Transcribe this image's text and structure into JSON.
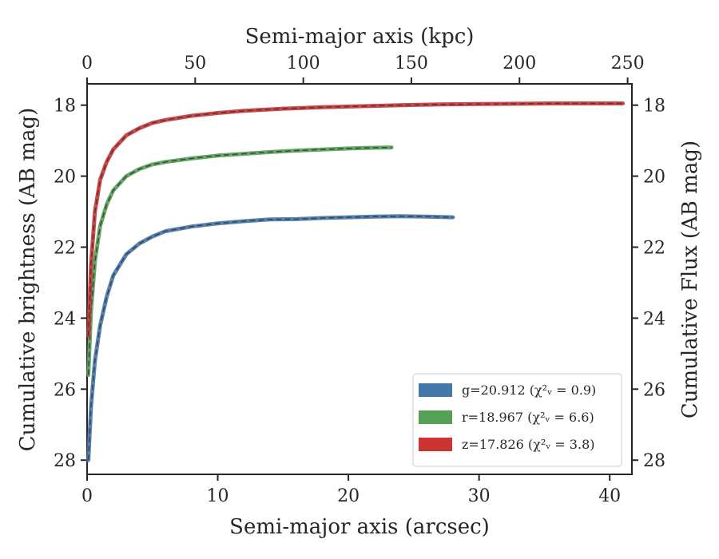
{
  "chart_data": {
    "type": "line",
    "title": "",
    "xlabel": "Semi-major axis (arcsec)",
    "ylabel": "Cumulative brightness (AB mag)",
    "x2label": "Semi-major axis (kpc)",
    "y2label": "Cumulative Flux (AB mag)",
    "xlim": [
      0,
      41.7
    ],
    "ylim": [
      28.4,
      17.4
    ],
    "x2lim": [
      0,
      252
    ],
    "y_inverted": true,
    "xticks": [
      0,
      10,
      20,
      30,
      40
    ],
    "yticks": [
      18,
      20,
      22,
      24,
      26,
      28
    ],
    "x2ticks": [
      0,
      50,
      100,
      150,
      200,
      250
    ],
    "grid": false,
    "legend_position": "lower-right",
    "series": [
      {
        "name": "g=20.912 (χ²ᵥ = 0.9)",
        "color": "#4477aa",
        "x": [
          0.1,
          0.3,
          0.6,
          1.0,
          1.5,
          2.0,
          3.0,
          4.0,
          5.0,
          6.0,
          8.0,
          10.0,
          12.0,
          14.0,
          16.0,
          18.0,
          20.0,
          22.0,
          24.0,
          26.0,
          28.0
        ],
        "y": [
          28.0,
          26.5,
          25.2,
          24.2,
          23.4,
          22.8,
          22.2,
          21.9,
          21.7,
          21.55,
          21.42,
          21.33,
          21.27,
          21.22,
          21.21,
          21.18,
          21.16,
          21.14,
          21.13,
          21.14,
          21.16
        ]
      },
      {
        "name": "r=18.967 (χ²ᵥ = 6.6)",
        "color": "#55a055",
        "x": [
          0.1,
          0.3,
          0.6,
          1.0,
          1.5,
          2.0,
          3.0,
          4.0,
          5.0,
          6.0,
          8.0,
          10.0,
          12.0,
          14.0,
          16.0,
          18.0,
          20.0,
          22.0,
          23.3
        ],
        "y": [
          25.6,
          23.8,
          22.4,
          21.4,
          20.8,
          20.4,
          20.0,
          19.8,
          19.67,
          19.6,
          19.5,
          19.42,
          19.37,
          19.32,
          19.28,
          19.25,
          19.22,
          19.2,
          19.19
        ]
      },
      {
        "name": "z=17.826 (χ²ᵥ = 3.8)",
        "color": "#cc3333",
        "x": [
          0.1,
          0.3,
          0.6,
          1.0,
          1.5,
          2.0,
          3.0,
          4.0,
          5.0,
          6.0,
          8.0,
          10.0,
          12.0,
          15.0,
          18.0,
          21.0,
          24.0,
          27.0,
          30.0,
          33.0,
          36.0,
          39.0,
          41.0
        ],
        "y": [
          24.5,
          22.5,
          21.0,
          20.1,
          19.6,
          19.25,
          18.85,
          18.65,
          18.5,
          18.42,
          18.3,
          18.22,
          18.16,
          18.1,
          18.06,
          18.03,
          18.0,
          17.98,
          17.97,
          17.96,
          17.95,
          17.95,
          17.95
        ]
      }
    ]
  }
}
